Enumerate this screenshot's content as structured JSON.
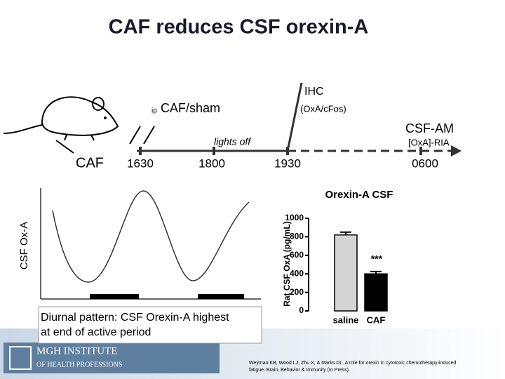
{
  "title": "CAF reduces CSF orexin-A",
  "timeline": {
    "caf": "CAF",
    "ip": "ip",
    "caf_sham": "CAF/sham",
    "ihc": "IHC",
    "ihc_detail": "(OxA/cFos)",
    "csf_am": "CSF-AM",
    "lights_off": "lights off",
    "ria": "[OxA]-RIA",
    "times": [
      "1630",
      "1800",
      "1930",
      "0600"
    ]
  },
  "diurnal": {
    "y_label": "CSF Ox-A",
    "caption": [
      "Diurnal pattern: CSF Orexin-A highest",
      "at end of active period"
    ]
  },
  "chart_data": {
    "type": "bar",
    "title": "Orexin-A CSF",
    "y_label": "Rat CSF OxA (pg/mL)",
    "categories": [
      "saline",
      "CAF"
    ],
    "values": [
      820,
      400
    ],
    "errors": [
      30,
      25
    ],
    "colors": [
      "#d4d4d4",
      "#000000"
    ],
    "ylim": [
      0,
      1000
    ],
    "yticks": [
      0,
      200,
      400,
      600,
      800,
      1000
    ],
    "annotation": "***"
  },
  "citation": [
    "Weyman KB, Wood LJ, Zhu X, & Marks DL. A role for orexin in cytotoxic chemotherapy-induced",
    "fatigue. Brain, Behavior & Immunity (In Press)."
  ],
  "logo": {
    "line1": "MGH INSTITUTE",
    "line2": "OF HEALTH PROFESSIONS"
  }
}
